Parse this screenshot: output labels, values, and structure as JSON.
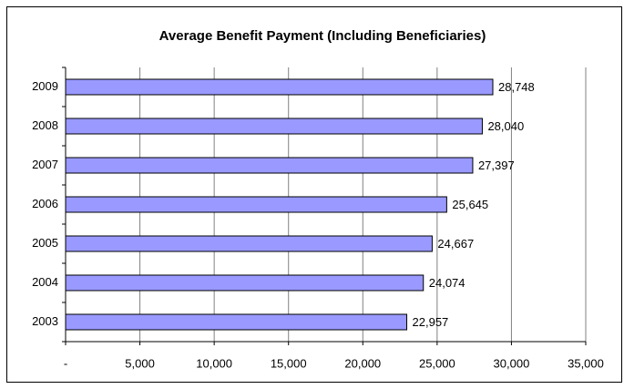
{
  "chart_data": {
    "type": "barh",
    "title": "Average Benefit Payment (Including Beneficiaries)",
    "categories": [
      "2003",
      "2004",
      "2005",
      "2006",
      "2007",
      "2008",
      "2009"
    ],
    "values": [
      22957,
      24074,
      24667,
      25645,
      27397,
      28040,
      28748
    ],
    "value_labels": [
      "22,957",
      "24,074",
      "24,667",
      "25,645",
      "27,397",
      "28,040",
      "28,748"
    ],
    "color": "#9999ff",
    "xlim": [
      0,
      35000
    ],
    "xticks": [
      {
        "value": 0,
        "label": "-"
      },
      {
        "value": 5000,
        "label": "5,000"
      },
      {
        "value": 10000,
        "label": "10,000"
      },
      {
        "value": 15000,
        "label": "15,000"
      },
      {
        "value": 20000,
        "label": "20,000"
      },
      {
        "value": 25000,
        "label": "25,000"
      },
      {
        "value": 30000,
        "label": "30,000"
      },
      {
        "value": 35000,
        "label": "35,000"
      }
    ],
    "grid": true
  }
}
